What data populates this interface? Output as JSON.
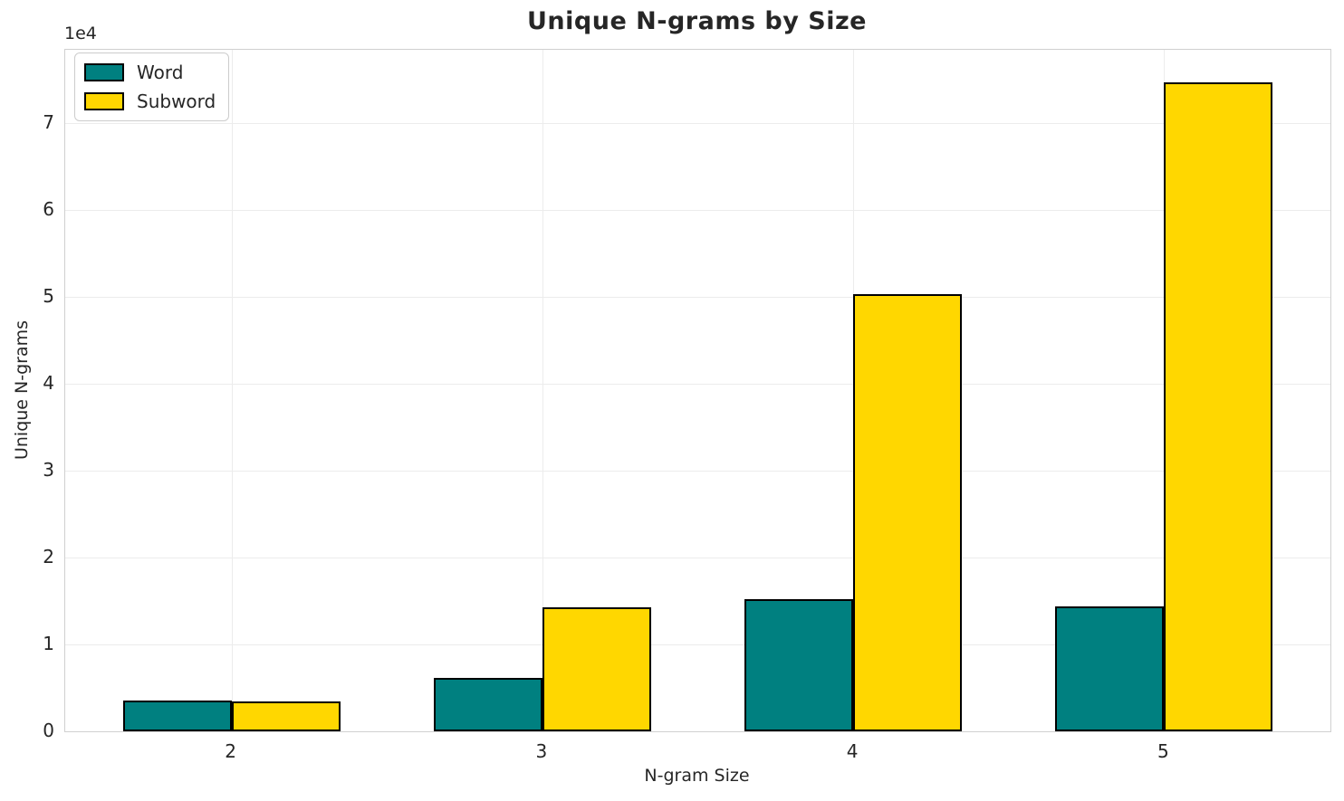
{
  "title": "Unique N-grams by Size",
  "axes": {
    "xlabel": "N-gram Size",
    "ylabel": "Unique N-grams",
    "offset_text": "1e4"
  },
  "legend": {
    "items": [
      {
        "label": "Word",
        "color": "#008080"
      },
      {
        "label": "Subword",
        "color": "#FFD700"
      }
    ]
  },
  "chart_data": {
    "type": "bar",
    "title": "Unique N-grams by Size",
    "xlabel": "N-gram Size",
    "ylabel": "Unique N-grams",
    "categories": [
      "2",
      "3",
      "4",
      "5"
    ],
    "series": [
      {
        "name": "Word",
        "color": "#008080",
        "values": [
          3500,
          6100,
          15200,
          14400
        ]
      },
      {
        "name": "Subword",
        "color": "#FFD700",
        "values": [
          3400,
          14300,
          50300,
          74700
        ]
      }
    ],
    "bar_edge_color": "#000000",
    "bar_width_category_units": 0.35,
    "ylim": [
      0,
      78400
    ],
    "xlim": [
      -0.535,
      3.535
    ],
    "yticks": [
      0,
      10000,
      20000,
      30000,
      40000,
      50000,
      60000,
      70000
    ],
    "ytick_labels": [
      "0",
      "1",
      "2",
      "3",
      "4",
      "5",
      "6",
      "7"
    ],
    "y_multiplier_label": "1e4",
    "grid": true,
    "grid_color": "#ececec",
    "legend_position": "upper left",
    "background_color": "#ffffff"
  }
}
